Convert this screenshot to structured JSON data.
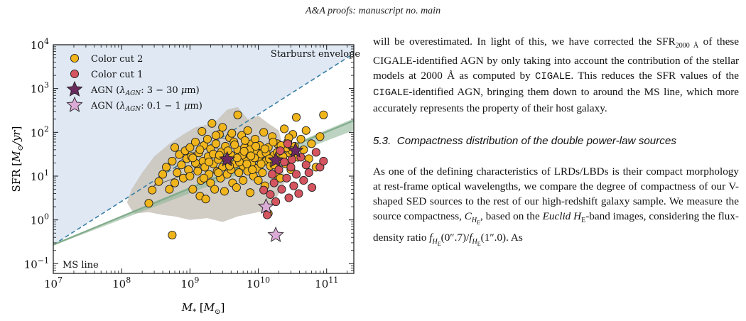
{
  "header": {
    "running_title": "A&A proofs: manuscript no. main"
  },
  "figure": {
    "annotations": {
      "starburst": "Starburst envelope",
      "ms_line": "MS line"
    },
    "legend": [
      {
        "label": "Color cut 2",
        "color": "#f1b51c",
        "marker": "circle"
      },
      {
        "label": "Color cut 1",
        "color": "#d4545f",
        "marker": "circle"
      },
      {
        "label": "AGN (λ_AGN: 3 − 30 μm)",
        "color": "#6a2a5e",
        "marker": "star"
      },
      {
        "label": "AGN (λ_AGN: 0.1 − 1 μm)",
        "color": "#dcaad6",
        "marker": "star"
      }
    ]
  },
  "chart_data": {
    "type": "scatter",
    "xlabel": "M* [M⊙]",
    "ylabel": "SFR [M⊙/yr]",
    "xscale": "log",
    "yscale": "log",
    "xlim": [
      10000000.0,
      250000000000.0
    ],
    "ylim": [
      0.06,
      10000
    ],
    "x_ticks": [
      "10^7",
      "10^8",
      "10^9",
      "10^10",
      "10^11"
    ],
    "y_ticks": [
      "10^-1",
      "10^0",
      "10^1",
      "10^2",
      "10^3",
      "10^4"
    ],
    "grid": false,
    "legend_position": "top-left",
    "lines": [
      {
        "name": "Starburst envelope",
        "style": "dashed",
        "color": "#3a7fa3",
        "points": [
          [
            10000000.0,
            0.27
          ],
          [
            250000000000.0,
            6300
          ]
        ]
      },
      {
        "name": "MS line",
        "style": "solid",
        "color": "#6f9e78",
        "points": [
          [
            10000000.0,
            0.27
          ],
          [
            250000000000.0,
            185
          ]
        ]
      }
    ],
    "series": [
      {
        "name": "Color cut 2",
        "color": "#f1b51c",
        "points": [
          [
            250000000.0,
            2.4
          ],
          [
            280000000.0,
            4.8
          ],
          [
            350000000.0,
            7.5
          ],
          [
            400000000.0,
            11
          ],
          [
            450000000.0,
            16
          ],
          [
            500000000.0,
            5
          ],
          [
            550000000.0,
            22
          ],
          [
            600000000.0,
            7
          ],
          [
            650000000.0,
            12
          ],
          [
            700000000.0,
            31
          ],
          [
            750000000.0,
            18
          ],
          [
            800000000.0,
            9
          ],
          [
            850000000.0,
            38
          ],
          [
            900000000.0,
            25
          ],
          [
            950000000.0,
            14
          ],
          [
            1000000000.0,
            45
          ],
          [
            1000000000.0,
            10
          ],
          [
            1050000000.0,
            28
          ],
          [
            1100000000.0,
            5
          ],
          [
            1200000000.0,
            60
          ],
          [
            1250000000.0,
            19
          ],
          [
            1300000000.0,
            13
          ],
          [
            1350000000.0,
            34
          ],
          [
            1400000000.0,
            3.5
          ],
          [
            1450000000.0,
            8
          ],
          [
            1500000000.0,
            105
          ],
          [
            1550000000.0,
            22
          ],
          [
            1600000000.0,
            50
          ],
          [
            1650000000.0,
            16
          ],
          [
            1700000000.0,
            3
          ],
          [
            1800000000.0,
            70
          ],
          [
            1850000000.0,
            28
          ],
          [
            1900000000.0,
            11
          ],
          [
            2000000000.0,
            42
          ],
          [
            2000000000.0,
            7
          ],
          [
            2100000000.0,
            160
          ],
          [
            2200000000.0,
            19
          ],
          [
            2300000000.0,
            5
          ],
          [
            2400000000.0,
            55
          ],
          [
            2500000000.0,
            13
          ],
          [
            2600000000.0,
            24
          ],
          [
            2700000000.0,
            90
          ],
          [
            2800000000.0,
            9
          ],
          [
            2900000000.0,
            36
          ],
          [
            3000000000.0,
            130
          ],
          [
            3000000000.0,
            16
          ],
          [
            3200000000.0,
            4.5
          ],
          [
            3300000000.0,
            48
          ],
          [
            3500000000.0,
            11
          ],
          [
            3600000000.0,
            23
          ],
          [
            3800000000.0,
            75
          ],
          [
            4000000000.0,
            14
          ],
          [
            4000000000.0,
            30
          ],
          [
            4200000000.0,
            7
          ],
          [
            4400000000.0,
            60
          ],
          [
            4600000000.0,
            19
          ],
          [
            4800000000.0,
            5.5
          ],
          [
            5000000000.0,
            40
          ],
          [
            5000000000.0,
            250
          ],
          [
            5200000000.0,
            12
          ],
          [
            5500000000.0,
            28
          ],
          [
            5700000000.0,
            85
          ],
          [
            6000000000.0,
            17
          ],
          [
            6000000000.0,
            8
          ],
          [
            6300000000.0,
            45
          ],
          [
            6600000000.0,
            22
          ],
          [
            7000000000.0,
            110
          ],
          [
            7000000000.0,
            13
          ],
          [
            7300000000.0,
            33
          ],
          [
            7600000000.0,
            4.2
          ],
          [
            8000000000.0,
            55
          ],
          [
            8000000000.0,
            20
          ],
          [
            8500000000.0,
            10
          ],
          [
            9000000000.0,
            38
          ],
          [
            9000000000.0,
            70
          ],
          [
            9500000000.0,
            15
          ],
          [
            10000000000.0,
            26
          ],
          [
            10000000000.0,
            8
          ],
          [
            10500000000.0,
            50
          ],
          [
            11000000000.0,
            32
          ],
          [
            11500000000.0,
            12
          ],
          [
            12000000000.0,
            100
          ],
          [
            12500000000.0,
            6
          ],
          [
            13000000000.0,
            22
          ],
          [
            14000000000.0,
            45
          ],
          [
            15000000000.0,
            17
          ],
          [
            16000000000.0,
            80
          ],
          [
            17000000000.0,
            30
          ],
          [
            18000000000.0,
            11
          ],
          [
            19000000000.0,
            55
          ],
          [
            20000000000.0,
            25
          ],
          [
            21000000000.0,
            9
          ],
          [
            22000000000.0,
            40
          ],
          [
            24000000000.0,
            120
          ],
          [
            25000000000.0,
            19
          ],
          [
            27000000000.0,
            60
          ],
          [
            29000000000.0,
            33
          ],
          [
            30000000000.0,
            14
          ],
          [
            32000000000.0,
            90
          ],
          [
            34000000000.0,
            48
          ],
          [
            36000000000.0,
            220
          ],
          [
            38000000000.0,
            27
          ],
          [
            42000000000.0,
            70
          ],
          [
            46000000000.0,
            40
          ],
          [
            50000000000.0,
            110
          ],
          [
            55000000000.0,
            25
          ],
          [
            60000000000.0,
            55
          ],
          [
            70000000000.0,
            16
          ],
          [
            80000000000.0,
            80
          ],
          [
            90000000000.0,
            250
          ],
          [
            600000000.0,
            45
          ],
          [
            1200000000.0,
            20
          ],
          [
            2200000000.0,
            32
          ],
          [
            3400000000.0,
            24
          ],
          [
            4500000000.0,
            52
          ],
          [
            5800000000.0,
            30
          ],
          [
            7500000000.0,
            40
          ],
          [
            8800000000.0,
            26
          ],
          [
            13000000000.0,
            34
          ],
          [
            17000000000.0,
            18
          ],
          [
            23000000000.0,
            28
          ],
          [
            31000000000.0,
            38
          ],
          [
            1600000000.0,
            9
          ],
          [
            2600000000.0,
            12
          ],
          [
            3800000000.0,
            17
          ],
          [
            5300000000.0,
            21
          ],
          [
            6800000000.0,
            19
          ],
          [
            8200000000.0,
            14
          ],
          [
            11000000000.0,
            19
          ],
          [
            14500000000.0,
            25
          ],
          [
            19000000000.0,
            35
          ],
          [
            26000000000.0,
            44
          ],
          [
            1100000000.0,
            26
          ],
          [
            1900000000.0,
            21
          ],
          [
            2700000000.0,
            30
          ],
          [
            3600000000.0,
            38
          ],
          [
            4900000000.0,
            26
          ],
          [
            6200000000.0,
            37
          ],
          [
            7800000000.0,
            29
          ],
          [
            9200000000.0,
            48
          ],
          [
            12500000000.0,
            42
          ],
          [
            16500000000.0,
            60
          ],
          [
            21500000000.0,
            50
          ],
          [
            28000000000.0,
            75
          ],
          [
            1400000000.0,
            40
          ],
          [
            2400000000.0,
            85
          ],
          [
            4100000000.0,
            95
          ],
          [
            6400000000.0,
            65
          ],
          [
            550000000.0,
            0.45
          ],
          [
            14000000000.0,
            1.4
          ]
        ]
      },
      {
        "name": "Color cut 1",
        "color": "#d4545f",
        "points": [
          [
            13500000000.0,
            1.3
          ],
          [
            15000000000.0,
            3.8
          ],
          [
            17000000000.0,
            7
          ],
          [
            18000000000.0,
            2.6
          ],
          [
            20000000000.0,
            14
          ],
          [
            22000000000.0,
            5
          ],
          [
            24000000000.0,
            21
          ],
          [
            26000000000.0,
            9
          ],
          [
            28000000000.0,
            3.2
          ],
          [
            30000000000.0,
            16
          ],
          [
            33000000000.0,
            6
          ],
          [
            36000000000.0,
            11
          ],
          [
            39000000000.0,
            4
          ],
          [
            42000000000.0,
            27
          ],
          [
            46000000000.0,
            8
          ],
          [
            50000000000.0,
            18
          ],
          [
            55000000000.0,
            12
          ],
          [
            61000000000.0,
            5.5
          ],
          [
            70000000000.0,
            35
          ],
          [
            80000000000.0,
            16
          ],
          [
            90000000000.0,
            22
          ],
          [
            12000000000.0,
            4.8
          ],
          [
            16000000000.0,
            11
          ],
          [
            21000000000.0,
            38
          ],
          [
            27000000000.0,
            55
          ],
          [
            31000000000.0,
            24
          ]
        ]
      },
      {
        "name": "AGN (λ_AGN: 3 − 30 μm)",
        "color": "#6a2a5e",
        "points": [
          [
            3500000000.0,
            24
          ],
          [
            18000000000.0,
            23
          ],
          [
            35000000000.0,
            38
          ]
        ]
      },
      {
        "name": "AGN (λ_AGN: 0.1 − 1 μm)",
        "color": "#dcaad6",
        "points": [
          [
            13000000000.0,
            2.0
          ],
          [
            18000000000.0,
            0.45
          ]
        ]
      }
    ]
  },
  "text": {
    "para1_a": "will be overestimated. In light of this, we have corrected the SFR",
    "para1_sub": "2000 Å",
    "para1_b": " of these CIGALE-identified AGN by only taking into account the contribution of the stellar models at 2000 Å as computed by ",
    "para1_code1": "CIGALE",
    "para1_c": ". This reduces the SFR values of the ",
    "para1_code2": "CIGALE",
    "para1_d": "-identified AGN, bringing them down to around the MS line, which more accurately represents the property of their host galaxy.",
    "section_number": "5.3.",
    "section_title": "Compactness distribution of the double power-law sources",
    "para2_a": "As one of the defining characteristics of LRDs/LBDs is their compact morphology at rest-frame optical wavelengths, we compare the degree of compactness of our V-shaped SED sources to the rest of our high-redshift galaxy sample. We measure the source compactness, ",
    "para2_C": "C",
    "para2_Csub": "H",
    "para2_Csubsub": "E",
    "para2_b": ", based on the ",
    "para2_euclid": "Euclid H",
    "para2_euclid_sub": "E",
    "para2_c": "-band images, considering the flux-density ratio ",
    "para2_ratio": "f",
    "para2_d": "(0″.7)/",
    "para2_e": "(1″.0). As"
  }
}
